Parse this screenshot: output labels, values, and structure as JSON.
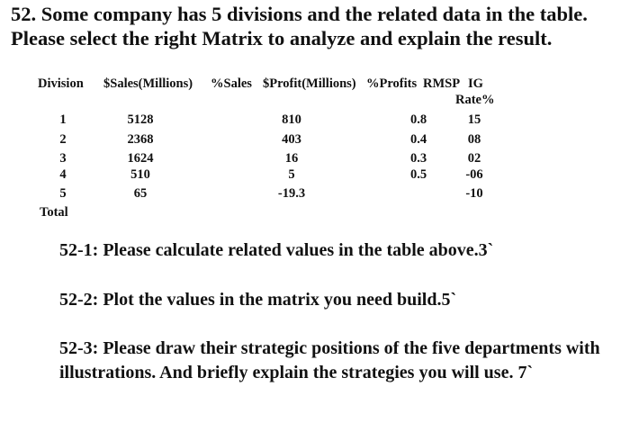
{
  "question": {
    "number": "52.",
    "text": "Some company has 5 divisions and the related data in the table. Please select the right Matrix to analyze and explain the result."
  },
  "table": {
    "headers": {
      "division": "Division",
      "sales": "$Sales(Millions)",
      "pct_sales": "%Sales",
      "profit": "$Profit(Millions)",
      "pct_profits": "%Profits",
      "rmsp": "RMSP",
      "ig_line1": "IG",
      "ig_line2": "Rate%"
    },
    "rows": [
      {
        "division": "1",
        "sales": "5128",
        "profit": "810",
        "rmsp": "0.8",
        "ig": "15"
      },
      {
        "division": "2",
        "sales": "2368",
        "profit": "403",
        "rmsp": "0.4",
        "ig": "08"
      },
      {
        "division": "3",
        "sales": "1624",
        "profit": "16",
        "rmsp": "0.3",
        "ig": "02"
      },
      {
        "division": "4",
        "sales": "510",
        "profit": "5",
        "rmsp": "0.5",
        "ig": "-06"
      },
      {
        "division": "5",
        "sales": "65",
        "profit": "-19.3",
        "rmsp": "",
        "ig": "-10"
      }
    ],
    "total_label": "Total"
  },
  "subquestions": [
    {
      "text": "52-1: Please calculate related values in the table above.3`"
    },
    {
      "text": "52-2: Plot the values in the matrix you need build.5`"
    },
    {
      "text": "52-3: Please draw their strategic positions of the five departments with illustrations. And briefly explain the strategies you will use. 7`"
    }
  ]
}
